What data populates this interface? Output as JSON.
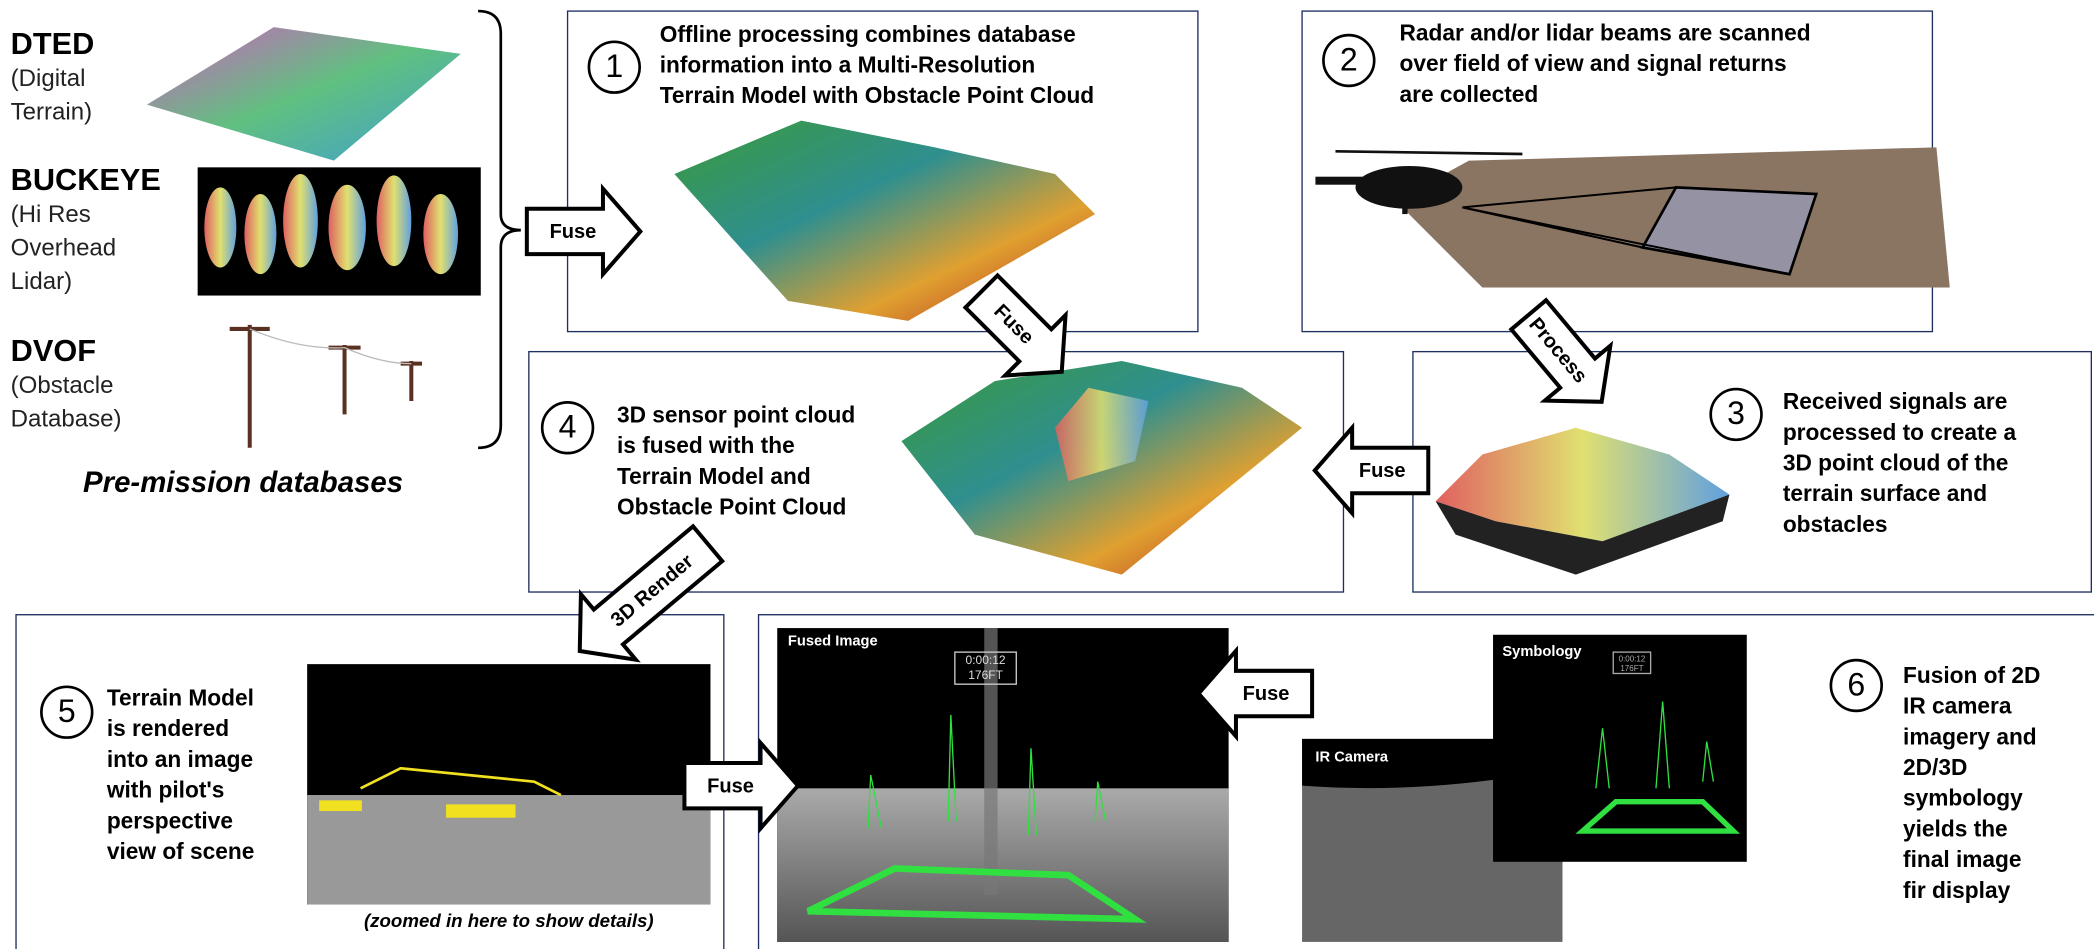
{
  "databases": [
    {
      "name": "DTED",
      "description": [
        "(Digital",
        "Terrain)"
      ]
    },
    {
      "name": "BUCKEYE",
      "description": [
        "(Hi Res",
        "Overhead",
        "Lidar)"
      ]
    },
    {
      "name": "DVOF",
      "description": [
        "(Obstacle",
        "Database)"
      ]
    }
  ],
  "databases_caption": "Pre-mission databases",
  "steps": [
    {
      "number": 1,
      "lines": [
        "Offline processing combines database",
        "information into a Multi-Resolution",
        "Terrain Model with Obstacle Point Cloud"
      ]
    },
    {
      "number": 2,
      "lines": [
        "Radar and/or lidar beams are scanned",
        "over field of view and signal returns",
        "are collected"
      ]
    },
    {
      "number": 3,
      "lines": [
        "Received signals are",
        "processed to create a",
        "3D point cloud of the",
        "terrain surface and",
        "obstacles"
      ]
    },
    {
      "number": 4,
      "lines": [
        "3D sensor point cloud",
        "is fused with the",
        "Terrain Model and",
        "Obstacle Point Cloud"
      ]
    },
    {
      "number": 5,
      "lines": [
        "Terrain Model",
        "is rendered",
        "into an image",
        "with pilot's",
        "perspective",
        "view of scene"
      ]
    },
    {
      "number": 6,
      "lines": [
        "Fusion of 2D",
        "IR camera",
        "imagery and",
        "2D/3D",
        "symbology",
        "yields the",
        "final image",
        "fir display"
      ]
    }
  ],
  "arrows": [
    "Fuse",
    "Fuse",
    "Process",
    "Fuse",
    "3D Render",
    "Fuse",
    "Fuse"
  ],
  "render_note": "(zoomed in here to show details)",
  "panels": {
    "fused_image": "Fused Image",
    "ir_camera": "IR Camera",
    "symbology": "Symbology"
  },
  "hud": {
    "time": "0:00:12",
    "altitude": "176FT"
  }
}
